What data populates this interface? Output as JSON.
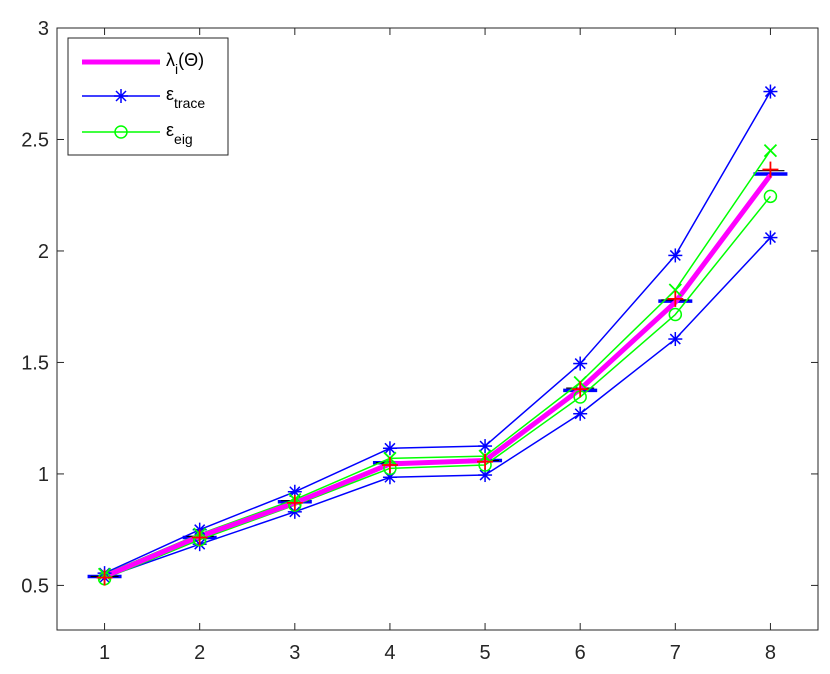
{
  "chart_data": {
    "type": "line",
    "x": [
      1,
      2,
      3,
      4,
      5,
      6,
      7,
      8
    ],
    "xlim": [
      0.5,
      8.5
    ],
    "ylim": [
      0.3,
      3.0
    ],
    "xticks": [
      "1",
      "2",
      "3",
      "4",
      "5",
      "6",
      "7",
      "8"
    ],
    "yticks": [
      "0.5",
      "1",
      "1.5",
      "2",
      "2.5",
      "3"
    ],
    "ytick_values": [
      0.5,
      1,
      1.5,
      2,
      2.5,
      3
    ],
    "grid": false,
    "legend_position": "top-left",
    "legend": [
      {
        "base": "λ",
        "sub": "i",
        "tail": "(Θ)",
        "color": "#ff00ff",
        "marker": "none"
      },
      {
        "base": "ε",
        "sub": "trace",
        "tail": "",
        "color": "#0000ff",
        "marker": "star"
      },
      {
        "base": "ε",
        "sub": "eig",
        "tail": "",
        "color": "#00ff00",
        "marker": "circle"
      }
    ],
    "series": [
      {
        "key": "lambda",
        "color": "#ff00ff",
        "marker": "none",
        "width": 5,
        "values": [
          0.54,
          0.72,
          0.87,
          1.045,
          1.06,
          1.38,
          1.77,
          2.34
        ]
      },
      {
        "key": "trace_upper",
        "color": "#0000ff",
        "marker": "star",
        "width": 1.5,
        "values": [
          0.555,
          0.75,
          0.92,
          1.115,
          1.125,
          1.495,
          1.98,
          2.715
        ]
      },
      {
        "key": "trace_lower",
        "color": "#0000ff",
        "marker": "star",
        "width": 1.5,
        "values": [
          0.535,
          0.685,
          0.83,
          0.985,
          0.995,
          1.27,
          1.605,
          2.06
        ]
      },
      {
        "key": "eig_upper",
        "color": "#00ff00",
        "marker": "x",
        "width": 1.5,
        "values": [
          0.55,
          0.73,
          0.885,
          1.07,
          1.08,
          1.41,
          1.825,
          2.45
        ]
      },
      {
        "key": "eig_lower",
        "color": "#00ff00",
        "marker": "circle",
        "width": 1.5,
        "values": [
          0.53,
          0.705,
          0.86,
          1.025,
          1.04,
          1.345,
          1.715,
          2.245
        ]
      }
    ],
    "blue_bars": [
      0.54,
      0.715,
      0.875,
      1.05,
      1.06,
      1.375,
      1.775,
      2.345
    ],
    "black_bars": [
      0.54,
      0.72,
      0.88,
      1.05,
      1.06,
      1.385,
      1.78,
      2.36
    ],
    "red_plus": [
      0.535,
      0.715,
      0.87,
      1.04,
      1.055,
      1.38,
      1.785,
      2.365
    ]
  }
}
